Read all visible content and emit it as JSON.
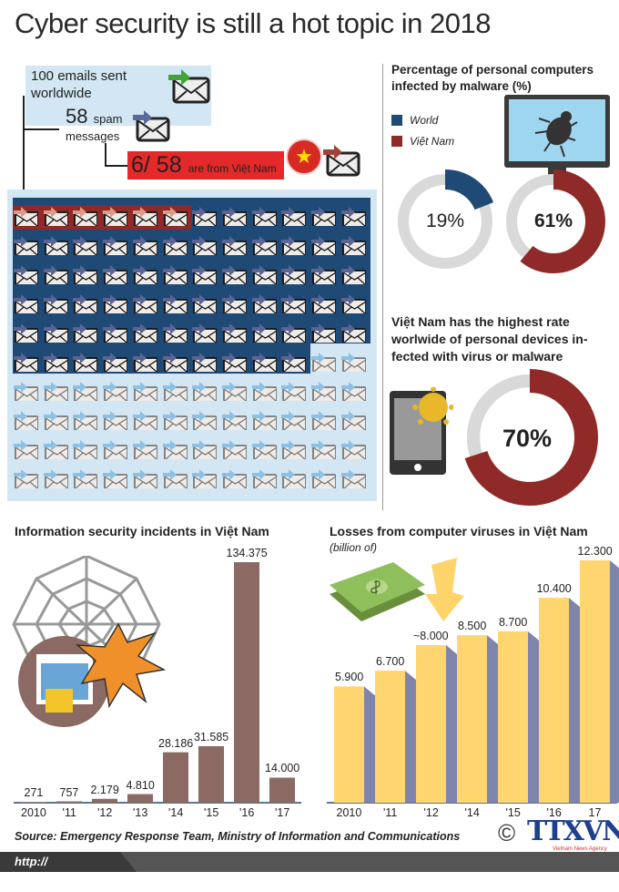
{
  "title": "Cyber security is still a hot topic in 2018",
  "emails": {
    "sent_text": "100 emails sent worldwide",
    "spam_number": "58",
    "spam_unit": "spam",
    "spam_label": "messages",
    "vn_fraction": "6/ 58",
    "vn_label": "are from Việt Nam",
    "grid_total_icons": 120,
    "grid_spam_icons": 70,
    "grid_vn_icons": 6
  },
  "colors": {
    "world": "#1e4a75",
    "vietnam": "#8f2a28",
    "red_banner": "#e3292a",
    "incident_bar": "#8a6a63",
    "loss_bar": "#fed56f",
    "track": "#d9d9d9"
  },
  "chart_data": [
    {
      "type": "pie",
      "title": "Percentage of personal computers infected by malware (%)",
      "legend": [
        "World",
        "Việt Nam"
      ],
      "series": [
        {
          "name": "World",
          "value": 19,
          "label": "19%"
        },
        {
          "name": "Việt Nam",
          "value": 61,
          "label": "61%"
        }
      ]
    },
    {
      "type": "pie",
      "title": "Việt Nam has the highest rate worlwide of personal devices in-fected with virus or malware",
      "series": [
        {
          "value": 70,
          "label": "70%"
        }
      ]
    },
    {
      "type": "bar",
      "title": "Information security incidents in Việt Nam",
      "categories": [
        "2010",
        "'11",
        "'12",
        "'13",
        "'14",
        "'15",
        "'16",
        "'17"
      ],
      "values": [
        271,
        757,
        2179,
        4810,
        28186,
        31585,
        134375,
        14000
      ],
      "labels": [
        "271",
        "757",
        "2.179",
        "4.810",
        "28.186",
        "31.585",
        "134.375",
        "14.000"
      ]
    },
    {
      "type": "bar",
      "title": "Losses from computer viruses in Việt Nam",
      "subtitle": "(billion of)",
      "categories": [
        "2010",
        "'11",
        "'12",
        "'14",
        "'15",
        "'16",
        "17"
      ],
      "values": [
        5900,
        6700,
        8000,
        8500,
        8700,
        10400,
        12300
      ],
      "labels": [
        "5.900",
        "6.700",
        "~8.000",
        "8.500",
        "8.700",
        "10.400",
        "12.300"
      ]
    }
  ],
  "source": "Source: Emergency Response Team, Ministry of Information and Communications",
  "footer_url": "http:// infographics.vn",
  "logo": {
    "symbol": "©",
    "name": "TTXVN",
    "tagline": "Vietnam News Agency"
  }
}
